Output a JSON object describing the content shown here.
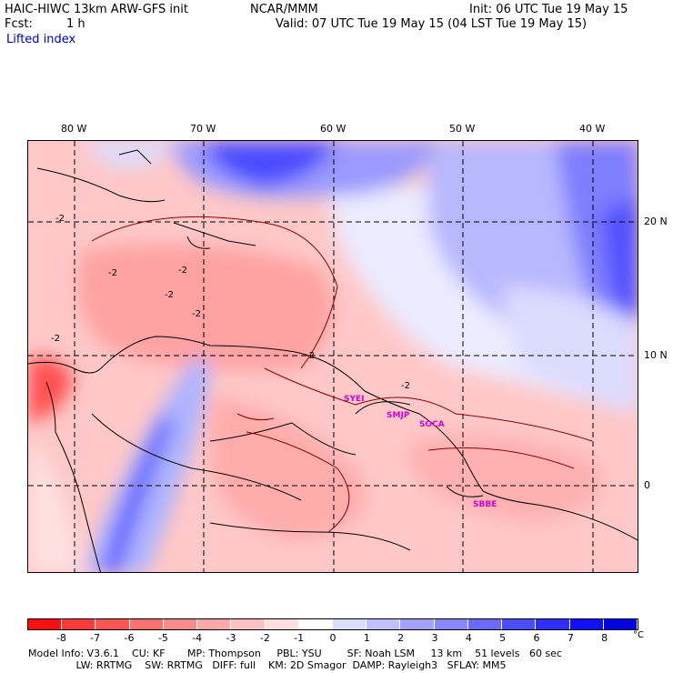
{
  "header": {
    "model_title": "HAIC-HIWC 13km ARW-GFS init",
    "org": "NCAR/MMM",
    "init": "Init: 06 UTC Tue 19 May 15",
    "fcst_label": "Fcst:",
    "fcst_value": "1 h",
    "valid": "Valid: 07 UTC Tue 19 May 15 (04 LST Tue 19 May 15)",
    "field": "Lifted index"
  },
  "map": {
    "lon_labels": [
      "80 W",
      "70 W",
      "60 W",
      "50 W",
      "40 W"
    ],
    "lat_labels": [
      "20 N",
      "10 N",
      "0"
    ],
    "contour_labels": [
      "-2",
      "-2",
      "-2",
      "-2",
      "-2",
      "-2",
      "-2",
      "-2"
    ],
    "stations": [
      "SYEI",
      "SMJP",
      "SOCA",
      "SBBE"
    ]
  },
  "colorbar": {
    "labels": [
      "-8",
      "-7",
      "-6",
      "-5",
      "-4",
      "-3",
      "-2",
      "-1",
      "0",
      "1",
      "2",
      "3",
      "4",
      "5",
      "6",
      "7",
      "8"
    ],
    "unit": "°C",
    "colors": [
      "#ff1010",
      "#ff3a3a",
      "#ff5656",
      "#ff7070",
      "#ff8c8c",
      "#ffa8a8",
      "#ffc2c2",
      "#ffdede",
      "#ffffff",
      "#dcdcff",
      "#c0c0ff",
      "#a4a4ff",
      "#8888ff",
      "#6a6aff",
      "#4c4cff",
      "#2e2eff",
      "#1010ff",
      "#0000e0"
    ]
  },
  "footer": {
    "line1": "Model Info: V3.6.1    CU: KF       MP: Thompson     PBL: YSU        SF: Noah LSM     13 km    51 levels   60 sec",
    "line2": "               LW: RRTMG    SW: RRTMG   DIFF: full    KM: 2D Smagor  DAMP: Rayleigh3   SFLAY: MM5"
  }
}
